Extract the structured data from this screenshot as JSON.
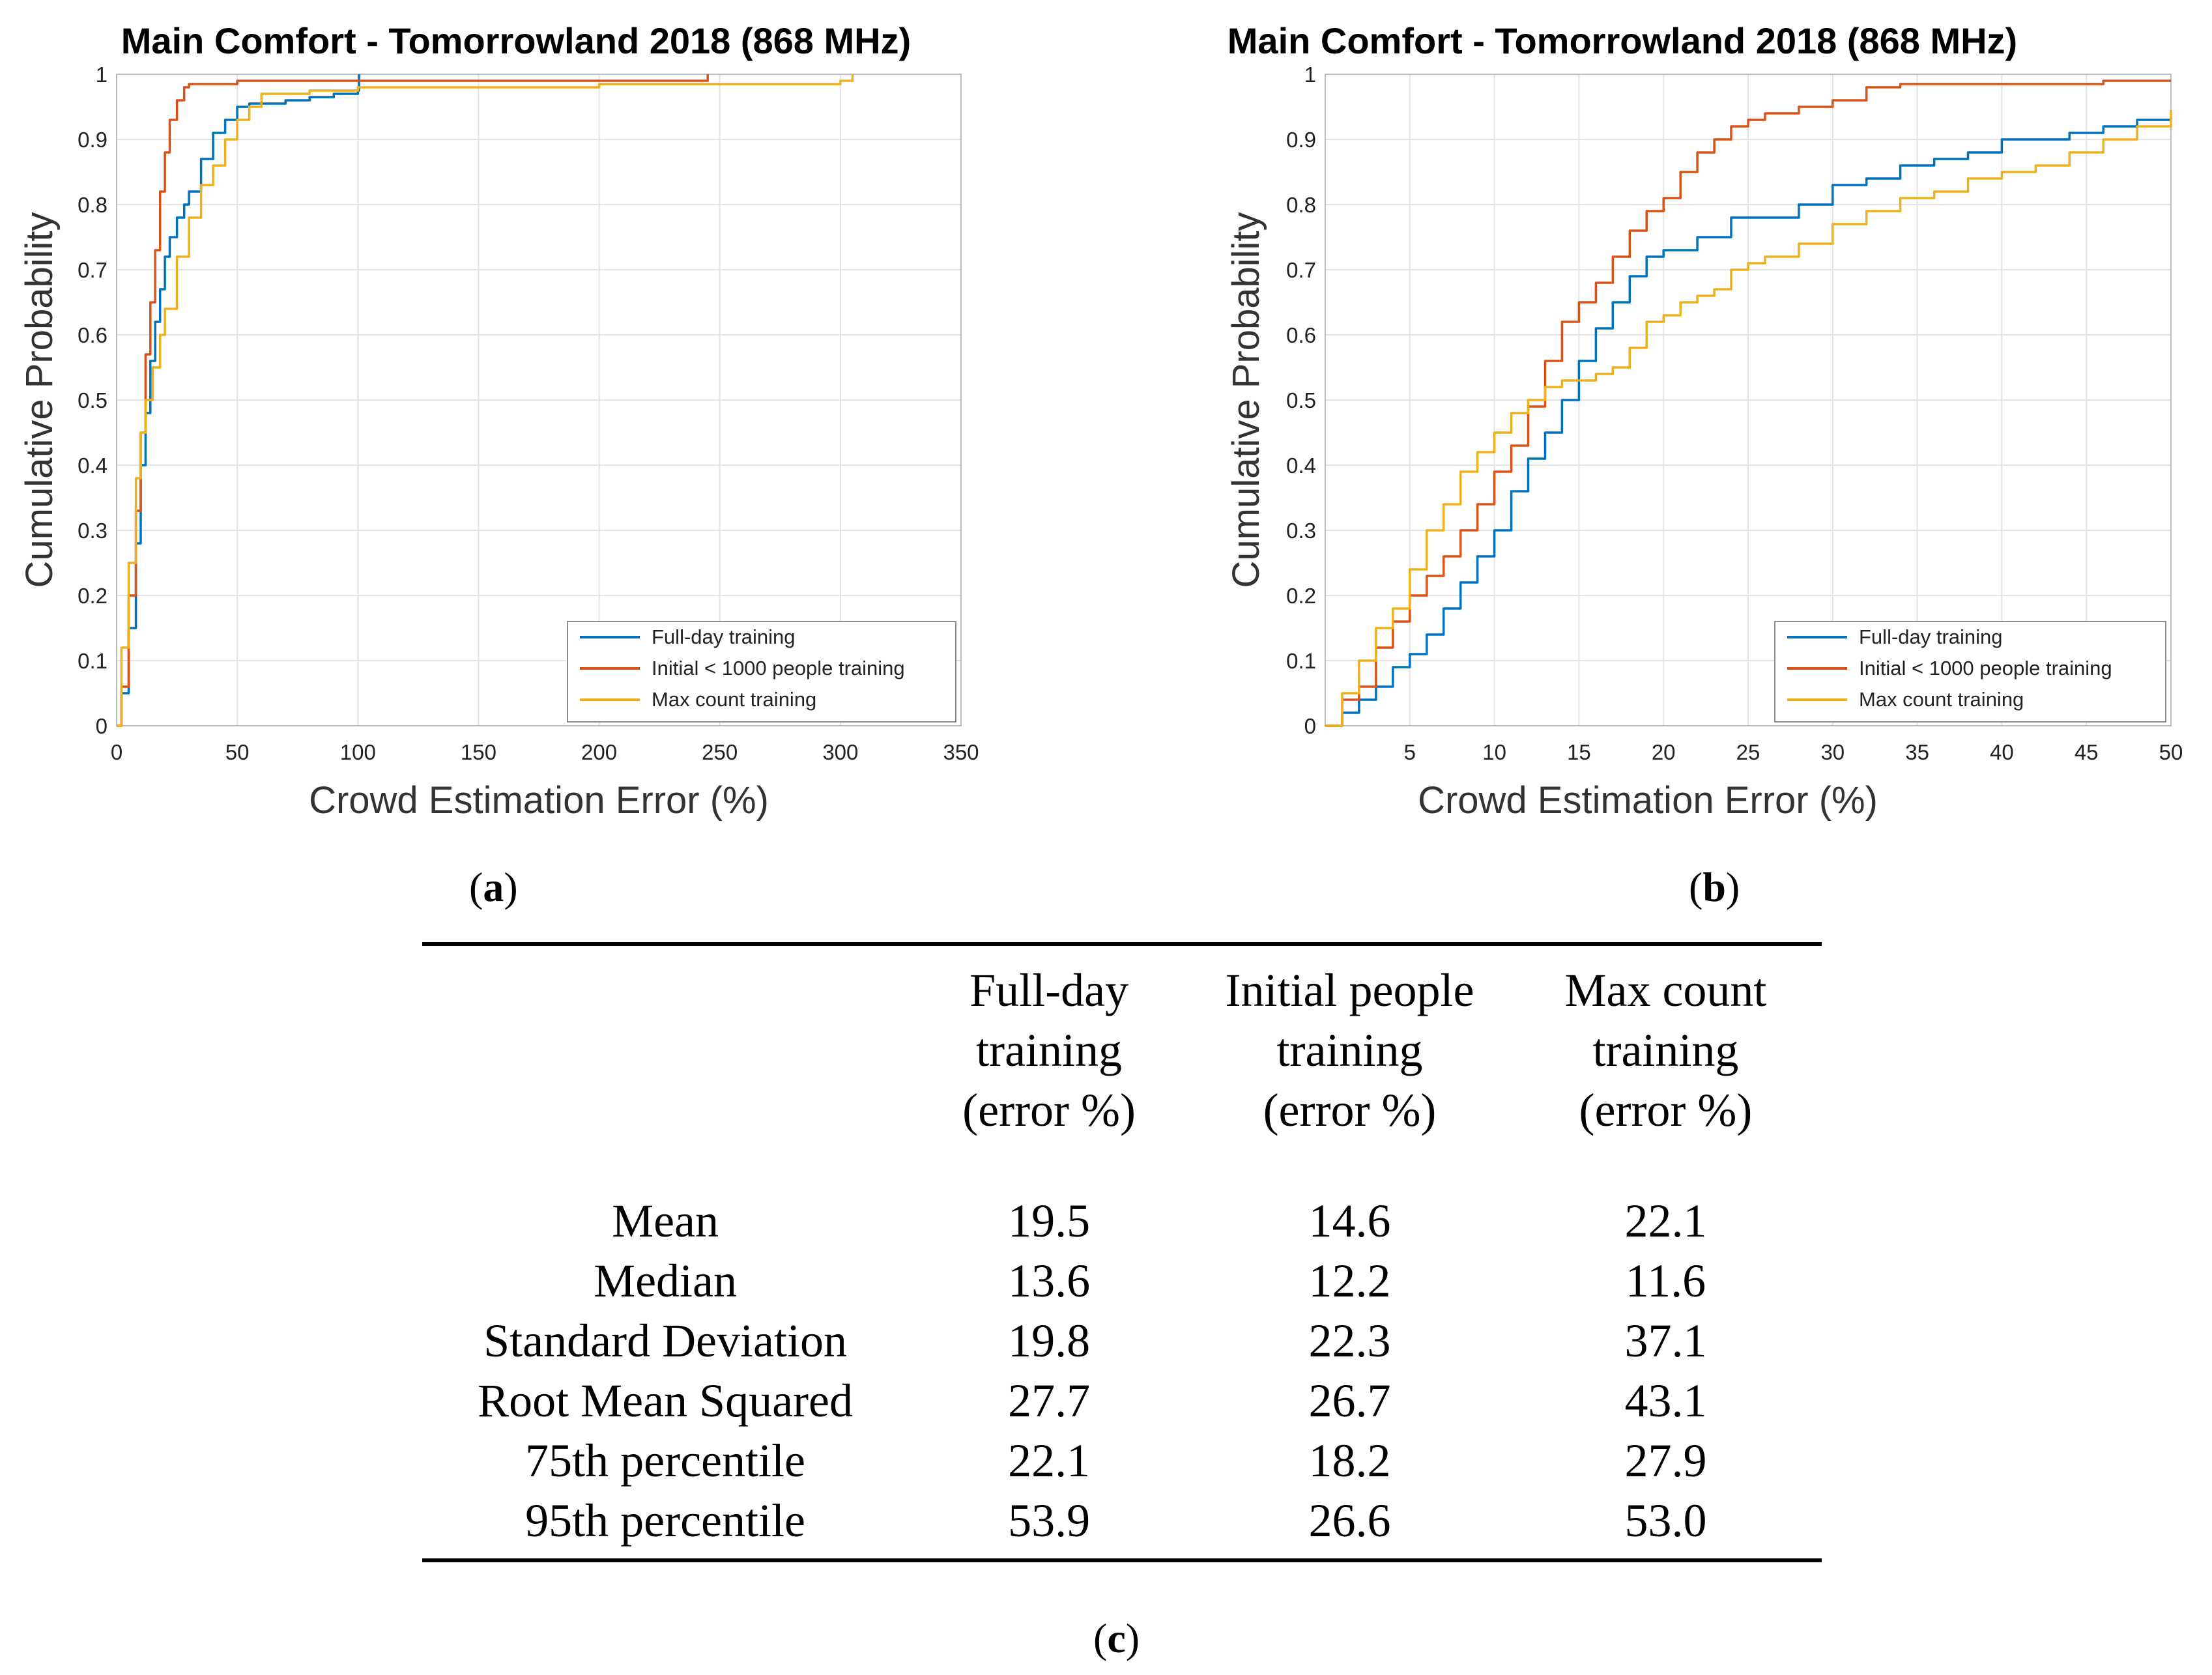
{
  "chart_data": [
    {
      "id": "a",
      "type": "line",
      "title": "Main Comfort - Tomorrowland 2018 (868 MHz)",
      "xlabel": "Crowd Estimation Error (%)",
      "ylabel": "Cumulative Probability",
      "xlim": [
        0,
        350
      ],
      "ylim": [
        0,
        1
      ],
      "xticks": [
        0,
        50,
        100,
        150,
        200,
        250,
        300,
        350
      ],
      "yticks": [
        0,
        0.1,
        0.2,
        0.3,
        0.4,
        0.5,
        0.6,
        0.7,
        0.8,
        0.9,
        1
      ],
      "xtick_labels": [
        "0",
        "50",
        "100",
        "150",
        "200",
        "250",
        "300",
        "350"
      ],
      "ytick_labels": [
        "0",
        "0.1",
        "0.2",
        "0.3",
        "0.4",
        "0.5",
        "0.6",
        "0.7",
        "0.8",
        "0.9",
        "1"
      ],
      "grid": true,
      "legend_position": "bottom-right",
      "series": [
        {
          "name": "Full-day training",
          "color": "#0072BD",
          "x": [
            0,
            2,
            5,
            8,
            10,
            12,
            14,
            16,
            18,
            20,
            22,
            25,
            28,
            30,
            35,
            40,
            45,
            50,
            55,
            60,
            70,
            80,
            90,
            100,
            100.5
          ],
          "y": [
            0,
            0.05,
            0.15,
            0.28,
            0.4,
            0.48,
            0.56,
            0.62,
            0.67,
            0.72,
            0.75,
            0.78,
            0.8,
            0.82,
            0.87,
            0.91,
            0.93,
            0.95,
            0.955,
            0.955,
            0.96,
            0.965,
            0.97,
            0.975,
            1.0
          ]
        },
        {
          "name": "Initial < 1000 people training",
          "color": "#D95319",
          "x": [
            0,
            2,
            5,
            8,
            10,
            12,
            14,
            16,
            18,
            20,
            22,
            25,
            28,
            30,
            40,
            50,
            60,
            100,
            200,
            240,
            245
          ],
          "y": [
            0,
            0.06,
            0.2,
            0.33,
            0.45,
            0.57,
            0.65,
            0.73,
            0.82,
            0.88,
            0.93,
            0.96,
            0.98,
            0.985,
            0.985,
            0.99,
            0.99,
            0.99,
            0.99,
            0.99,
            1.0
          ]
        },
        {
          "name": "Max count training",
          "color": "#EDB120",
          "x": [
            0,
            2,
            5,
            8,
            10,
            12,
            15,
            18,
            20,
            25,
            30,
            35,
            40,
            45,
            50,
            55,
            60,
            80,
            100,
            150,
            200,
            250,
            300,
            305
          ],
          "y": [
            0,
            0.12,
            0.25,
            0.38,
            0.45,
            0.5,
            0.55,
            0.6,
            0.64,
            0.72,
            0.78,
            0.83,
            0.86,
            0.9,
            0.93,
            0.95,
            0.97,
            0.975,
            0.98,
            0.98,
            0.985,
            0.985,
            0.99,
            1.0
          ]
        }
      ]
    },
    {
      "id": "b",
      "type": "line",
      "title": "Main Comfort - Tomorrowland 2018 (868 MHz)",
      "xlabel": "Crowd Estimation Error (%)",
      "ylabel": "Cumulative Probability",
      "xlim": [
        0,
        50
      ],
      "ylim": [
        0,
        1
      ],
      "xticks": [
        5,
        10,
        15,
        20,
        25,
        30,
        35,
        40,
        45,
        50
      ],
      "yticks": [
        0,
        0.1,
        0.2,
        0.3,
        0.4,
        0.5,
        0.6,
        0.7,
        0.8,
        0.9,
        1
      ],
      "xtick_labels": [
        "5",
        "10",
        "15",
        "20",
        "25",
        "30",
        "35",
        "40",
        "45",
        "50"
      ],
      "ytick_labels": [
        "0",
        "0.1",
        "0.2",
        "0.3",
        "0.4",
        "0.5",
        "0.6",
        "0.7",
        "0.8",
        "0.9",
        "1"
      ],
      "grid": true,
      "legend_position": "bottom-right",
      "series": [
        {
          "name": "Full-day training",
          "color": "#0072BD",
          "x": [
            0,
            1,
            2,
            3,
            4,
            5,
            6,
            7,
            8,
            9,
            10,
            11,
            12,
            13,
            14,
            15,
            16,
            17,
            18,
            19,
            20,
            22,
            24,
            26,
            28,
            30,
            32,
            34,
            36,
            38,
            40,
            42,
            44,
            46,
            48,
            50
          ],
          "y": [
            0,
            0.02,
            0.04,
            0.06,
            0.09,
            0.11,
            0.14,
            0.18,
            0.22,
            0.26,
            0.3,
            0.36,
            0.41,
            0.45,
            0.5,
            0.56,
            0.61,
            0.65,
            0.69,
            0.72,
            0.73,
            0.75,
            0.78,
            0.78,
            0.8,
            0.83,
            0.84,
            0.86,
            0.87,
            0.88,
            0.9,
            0.9,
            0.91,
            0.92,
            0.93,
            0.935
          ]
        },
        {
          "name": "Initial < 1000 people training",
          "color": "#D95319",
          "x": [
            0,
            1,
            2,
            3,
            4,
            5,
            6,
            7,
            8,
            9,
            10,
            11,
            12,
            13,
            14,
            15,
            16,
            17,
            18,
            19,
            20,
            21,
            22,
            23,
            24,
            25,
            26,
            28,
            30,
            32,
            34,
            36,
            38,
            40,
            42,
            44,
            46,
            48,
            50
          ],
          "y": [
            0,
            0.04,
            0.06,
            0.12,
            0.16,
            0.2,
            0.23,
            0.26,
            0.3,
            0.34,
            0.39,
            0.43,
            0.49,
            0.56,
            0.62,
            0.65,
            0.68,
            0.72,
            0.76,
            0.79,
            0.81,
            0.85,
            0.88,
            0.9,
            0.92,
            0.93,
            0.94,
            0.95,
            0.96,
            0.98,
            0.985,
            0.985,
            0.985,
            0.985,
            0.985,
            0.985,
            0.99,
            0.99,
            0.99
          ]
        },
        {
          "name": "Max count training",
          "color": "#EDB120",
          "x": [
            0,
            1,
            2,
            3,
            4,
            5,
            6,
            7,
            8,
            9,
            10,
            11,
            12,
            13,
            14,
            15,
            16,
            17,
            18,
            19,
            20,
            21,
            22,
            23,
            24,
            25,
            26,
            28,
            30,
            32,
            34,
            36,
            38,
            40,
            42,
            44,
            46,
            48,
            50
          ],
          "y": [
            0,
            0.05,
            0.1,
            0.15,
            0.18,
            0.24,
            0.3,
            0.34,
            0.39,
            0.42,
            0.45,
            0.48,
            0.5,
            0.52,
            0.53,
            0.53,
            0.54,
            0.55,
            0.58,
            0.62,
            0.63,
            0.65,
            0.66,
            0.67,
            0.7,
            0.71,
            0.72,
            0.74,
            0.77,
            0.79,
            0.81,
            0.82,
            0.84,
            0.85,
            0.86,
            0.88,
            0.9,
            0.92,
            0.945
          ]
        }
      ]
    }
  ],
  "captions": {
    "a": "a",
    "b": "b",
    "c": "c"
  },
  "table": {
    "columns": [
      {
        "line1": "Full-day",
        "line2": "training",
        "line3": "(error %)"
      },
      {
        "line1": "Initial people",
        "line2": "training",
        "line3": "(error %)"
      },
      {
        "line1": "Max count",
        "line2": "training",
        "line3": "(error %)"
      }
    ],
    "rows": [
      {
        "label": "Mean",
        "values": [
          "19.5",
          "14.6",
          "22.1"
        ]
      },
      {
        "label": "Median",
        "values": [
          "13.6",
          "12.2",
          "11.6"
        ]
      },
      {
        "label": "Standard Deviation",
        "values": [
          "19.8",
          "22.3",
          "37.1"
        ]
      },
      {
        "label": "Root Mean Squared",
        "values": [
          "27.7",
          "26.7",
          "43.1"
        ]
      },
      {
        "label": "75th percentile",
        "values": [
          "22.1",
          "18.2",
          "27.9"
        ]
      },
      {
        "label": "95th percentile",
        "values": [
          "53.9",
          "26.6",
          "53.0"
        ]
      }
    ]
  }
}
